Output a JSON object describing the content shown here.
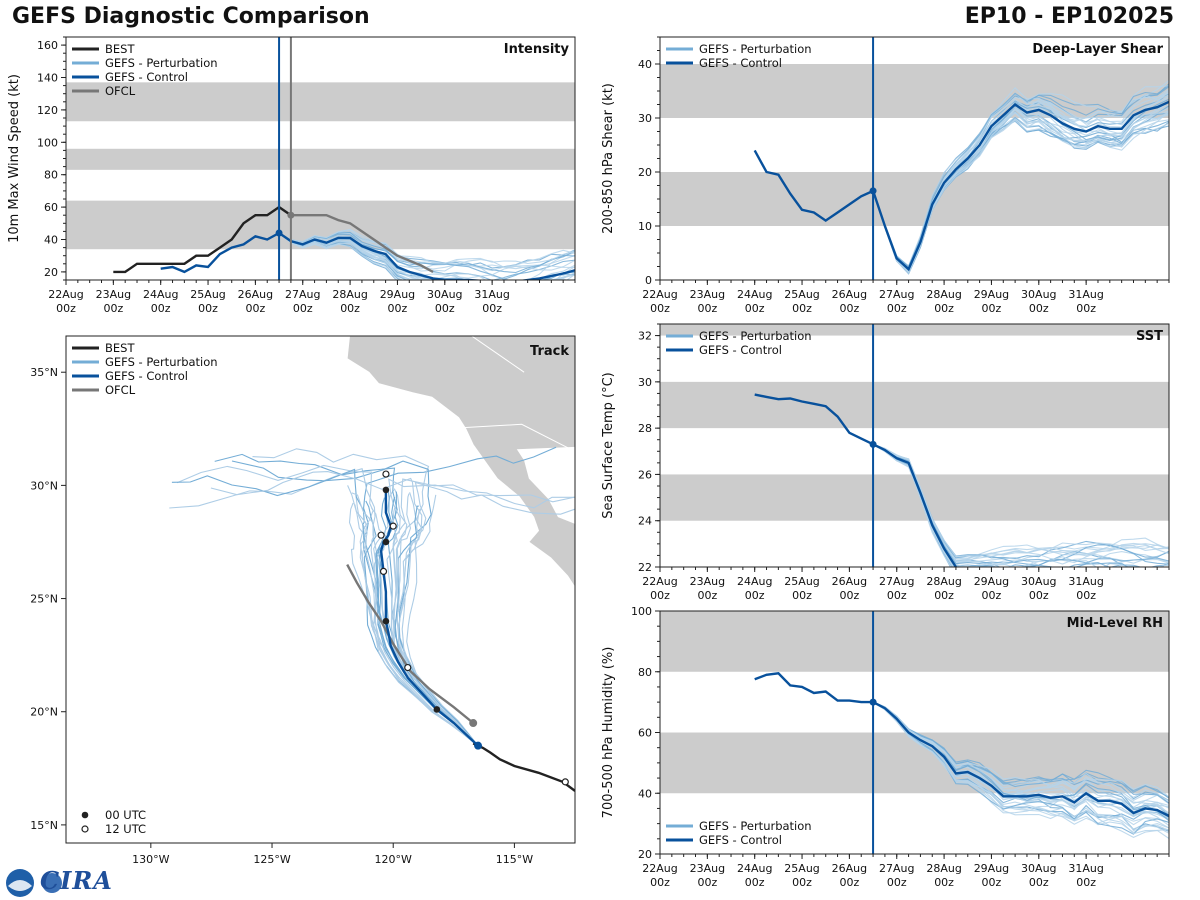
{
  "header": {
    "title_left": "GEFS Diagnostic Comparison",
    "title_right": "EP10 - EP102025"
  },
  "colors": {
    "best": "#222222",
    "perturbation": "#74add6",
    "control": "#08519c",
    "ofcl": "#777777",
    "band": "#cccccc",
    "land": "#cccccc"
  },
  "logo": {
    "name": "NOAA and CIRA logos",
    "text": "CIRA"
  },
  "time_axis": {
    "ticks": [
      {
        "day": "22Aug",
        "hour": "00z"
      },
      {
        "day": "23Aug",
        "hour": "00z"
      },
      {
        "day": "24Aug",
        "hour": "00z"
      },
      {
        "day": "25Aug",
        "hour": "00z"
      },
      {
        "day": "26Aug",
        "hour": "00z"
      },
      {
        "day": "27Aug",
        "hour": "00z"
      },
      {
        "day": "28Aug",
        "hour": "00z"
      },
      {
        "day": "29Aug",
        "hour": "00z"
      },
      {
        "day": "30Aug",
        "hour": "00z"
      },
      {
        "day": "31Aug",
        "hour": "00z"
      }
    ],
    "range_days": [
      0,
      10.75
    ],
    "init_day": 4.5,
    "ofcl_day": 4.75
  },
  "chart_data": [
    {
      "id": "intensity",
      "type": "line",
      "title": "Intensity",
      "ylabel": "10m Max Wind Speed (kt)",
      "ylim": [
        15,
        165
      ],
      "yticks": [
        20,
        40,
        60,
        80,
        100,
        120,
        140,
        160
      ],
      "bands": [
        [
          34,
          64
        ],
        [
          83,
          96
        ],
        [
          113,
          137
        ]
      ],
      "legend": [
        "BEST",
        "GEFS - Perturbation",
        "GEFS - Control",
        "OFCL"
      ],
      "series": [
        {
          "name": "BEST",
          "x": [
            1,
            1.25,
            1.5,
            1.75,
            2,
            2.25,
            2.5,
            2.75,
            3,
            3.25,
            3.5,
            3.75,
            4,
            4.25,
            4.5,
            4.75
          ],
          "y": [
            20,
            20,
            25,
            25,
            25,
            25,
            25,
            30,
            30,
            35,
            40,
            50,
            55,
            55,
            60,
            55
          ]
        },
        {
          "name": "GEFS - Control",
          "x": [
            2,
            2.25,
            2.5,
            2.75,
            3,
            3.25,
            3.5,
            3.75,
            4,
            4.25,
            4.5,
            4.75,
            5,
            5.25,
            5.5,
            5.75,
            6,
            6.25,
            6.5,
            6.75,
            7,
            7.25,
            7.5,
            7.75,
            8,
            8.5,
            9,
            9.5,
            10,
            10.5,
            10.75
          ],
          "y": [
            22,
            23,
            20,
            24,
            23,
            31,
            35,
            37,
            42,
            40,
            44,
            39,
            37,
            40,
            38,
            41,
            41,
            36,
            33,
            31,
            23,
            20,
            18,
            16,
            15,
            15,
            14,
            14,
            16,
            19,
            21
          ]
        },
        {
          "name": "OFCL",
          "x": [
            4.75,
            5,
            5.25,
            5.5,
            5.75,
            6,
            6.25,
            6.5,
            6.75,
            7,
            7.25,
            7.5,
            7.75
          ],
          "y": [
            55,
            55,
            55,
            55,
            52,
            50,
            45,
            40,
            35,
            30,
            27,
            24,
            20
          ]
        }
      ],
      "perturbation_count": 30
    },
    {
      "id": "shear",
      "type": "line",
      "title": "Deep-Layer Shear",
      "ylabel": "200-850 hPa Shear (kt)",
      "ylim": [
        0,
        45
      ],
      "yticks": [
        0,
        10,
        20,
        30,
        40
      ],
      "bands": [
        [
          10,
          20
        ],
        [
          30,
          40
        ]
      ],
      "legend": [
        "GEFS - Perturbation",
        "GEFS - Control"
      ],
      "series": [
        {
          "name": "GEFS - Control",
          "x": [
            2,
            2.25,
            2.5,
            2.75,
            3,
            3.25,
            3.5,
            3.75,
            4,
            4.25,
            4.5,
            4.75,
            5,
            5.25,
            5.5,
            5.75,
            6,
            6.25,
            6.5,
            6.75,
            7,
            7.25,
            7.5,
            7.75,
            8,
            8.25,
            8.5,
            8.75,
            9,
            9.25,
            9.5,
            9.75,
            10,
            10.25,
            10.5,
            10.75
          ],
          "y": [
            24,
            20,
            19.5,
            16,
            13,
            12.5,
            11,
            12.5,
            14,
            15.5,
            16.5,
            10,
            4,
            2,
            7,
            14,
            18,
            20.5,
            22.5,
            25,
            28.5,
            30.5,
            32.5,
            31,
            31.5,
            30.5,
            29,
            28,
            27.5,
            28.5,
            28,
            28,
            30.5,
            31.5,
            32,
            33
          ]
        }
      ],
      "perturbation_count": 30
    },
    {
      "id": "sst",
      "type": "line",
      "title": "SST",
      "ylabel": "Sea Surface Temp (°C)",
      "ylim": [
        22,
        32.5
      ],
      "yticks": [
        22,
        24,
        26,
        28,
        30,
        32
      ],
      "bands": [
        [
          24,
          26
        ],
        [
          28,
          30
        ],
        [
          32,
          34
        ]
      ],
      "legend": [
        "GEFS - Perturbation",
        "GEFS - Control"
      ],
      "series": [
        {
          "name": "GEFS - Control",
          "x": [
            2,
            2.25,
            2.5,
            2.75,
            3,
            3.25,
            3.5,
            3.75,
            4,
            4.25,
            4.5,
            4.75,
            5,
            5.25,
            5.5,
            5.75,
            6,
            6.25
          ],
          "y": [
            29.45,
            29.35,
            29.25,
            29.28,
            29.15,
            29.05,
            28.95,
            28.5,
            27.8,
            27.55,
            27.3,
            27.05,
            26.7,
            26.5,
            25.2,
            23.8,
            22.8,
            22
          ]
        }
      ],
      "perturbation_count": 30
    },
    {
      "id": "rh",
      "type": "line",
      "title": "Mid-Level RH",
      "ylabel": "700-500 hPa Humidity (%)",
      "ylim": [
        20,
        100
      ],
      "yticks": [
        20,
        40,
        60,
        80,
        100
      ],
      "bands": [
        [
          40,
          60
        ],
        [
          80,
          100
        ]
      ],
      "legend": [
        "GEFS - Perturbation",
        "GEFS - Control"
      ],
      "series": [
        {
          "name": "GEFS - Control",
          "x": [
            2,
            2.25,
            2.5,
            2.75,
            3,
            3.25,
            3.5,
            3.75,
            4,
            4.25,
            4.5,
            4.75,
            5,
            5.25,
            5.5,
            5.75,
            6,
            6.25,
            6.5,
            6.75,
            7,
            7.25,
            7.5,
            7.75,
            8,
            8.25,
            8.5,
            8.75,
            9,
            9.25,
            9.5,
            9.75,
            10,
            10.25,
            10.5,
            10.75
          ],
          "y": [
            77.5,
            79,
            79.5,
            75.5,
            75,
            73,
            73.5,
            70.5,
            70.5,
            70,
            70,
            68,
            64.5,
            60,
            57.5,
            55.5,
            52,
            46.5,
            47,
            45,
            42.5,
            39,
            39,
            39,
            39.5,
            38.5,
            39,
            37,
            40,
            37.5,
            37.5,
            36.5,
            33.5,
            35,
            34.5,
            32.5
          ]
        }
      ],
      "perturbation_count": 30
    },
    {
      "id": "track",
      "type": "scatter",
      "title": "Track",
      "xlim": [
        -133.5,
        -112.5
      ],
      "ylim": [
        14.2,
        36.6
      ],
      "xticks": [
        {
          "v": -130,
          "label": "130°W"
        },
        {
          "v": -125,
          "label": "125°W"
        },
        {
          "v": -120,
          "label": "120°W"
        },
        {
          "v": -115,
          "label": "115°W"
        }
      ],
      "yticks": [
        {
          "v": 15,
          "label": "15°N"
        },
        {
          "v": 20,
          "label": "20°N"
        },
        {
          "v": 25,
          "label": "25°N"
        },
        {
          "v": 30,
          "label": "30°N"
        },
        {
          "v": 35,
          "label": "35°N"
        }
      ],
      "legend": [
        "BEST",
        "GEFS - Perturbation",
        "GEFS - Control",
        "OFCL"
      ],
      "markers_legend": [
        "00 UTC",
        "12 UTC"
      ],
      "best_track": {
        "lon": [
          -112.5,
          -113,
          -114,
          -115,
          -115.6,
          -116,
          -116.3,
          -116.7
        ],
        "lat": [
          16.5,
          16.9,
          17.3,
          17.6,
          17.9,
          18.2,
          18.4,
          18.6
        ]
      },
      "best_12utc": [
        {
          "lon": -112.9,
          "lat": 16.9
        }
      ],
      "ofcl_track": {
        "lon": [
          -116.7,
          -117.5,
          -118.5,
          -119.3,
          -120,
          -120.5,
          -121,
          -121.5,
          -121.9
        ],
        "lat": [
          19.5,
          20.2,
          21,
          21.8,
          23,
          24,
          24.8,
          25.7,
          26.5
        ]
      },
      "control_track": {
        "lon": [
          -116.5,
          -117,
          -117.5,
          -118.2,
          -118.8,
          -119.4,
          -119.8,
          -120.1,
          -120.2,
          -120.3,
          -120.3,
          -120.3,
          -120.4,
          -120.5,
          -120.4,
          -120.2,
          -120.1,
          -120.3,
          -120.3,
          -120.3
        ],
        "lat": [
          18.5,
          19,
          19.5,
          20.1,
          20.8,
          21.5,
          22.2,
          22.9,
          23.5,
          24,
          24.6,
          25.3,
          26.2,
          27.1,
          27.5,
          27.8,
          28.2,
          28.8,
          29.4,
          29.8
        ]
      },
      "control_00utc": [
        {
          "lon": -118.2,
          "lat": 20.1
        },
        {
          "lon": -120.3,
          "lat": 24
        },
        {
          "lon": -120.3,
          "lat": 27.5
        },
        {
          "lon": -120.3,
          "lat": 29.8
        }
      ],
      "control_12utc": [
        {
          "lon": -119.4,
          "lat": 21.95
        },
        {
          "lon": -120.4,
          "lat": 26.2
        },
        {
          "lon": -120.5,
          "lat": 27.8
        },
        {
          "lon": -120,
          "lat": 28.2
        },
        {
          "lon": -120.3,
          "lat": 30.5
        }
      ],
      "perturbation_count": 30
    }
  ]
}
